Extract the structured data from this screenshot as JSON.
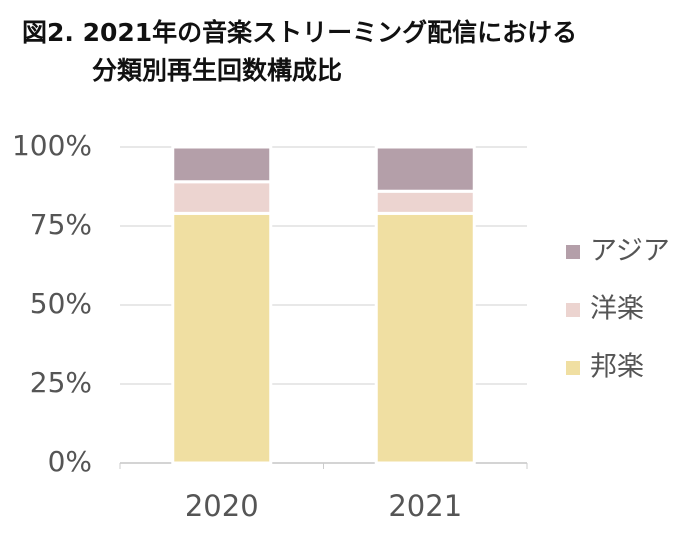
{
  "chart_data": {
    "type": "stacked-bar",
    "title": [
      "図2. 2021年の音楽ストリーミング配信における",
      "分類別再生回数構成比"
    ],
    "categories": [
      "2020",
      "2021"
    ],
    "series": [
      {
        "name": "邦楽",
        "color": "#f0dfa2",
        "values": [
          79,
          79
        ]
      },
      {
        "name": "洋楽",
        "color": "#ecd4d0",
        "values": [
          10,
          7
        ]
      },
      {
        "name": "アジア",
        "color": "#b49fa9",
        "values": [
          11,
          14
        ]
      }
    ],
    "ylim": [
      0,
      100
    ],
    "yticks": [
      {
        "value": 0,
        "label": "0%"
      },
      {
        "value": 25,
        "label": "25%"
      },
      {
        "value": 50,
        "label": "50%"
      },
      {
        "value": 75,
        "label": "75%"
      },
      {
        "value": 100,
        "label": "100%"
      }
    ],
    "grid": true,
    "legend": "right"
  }
}
